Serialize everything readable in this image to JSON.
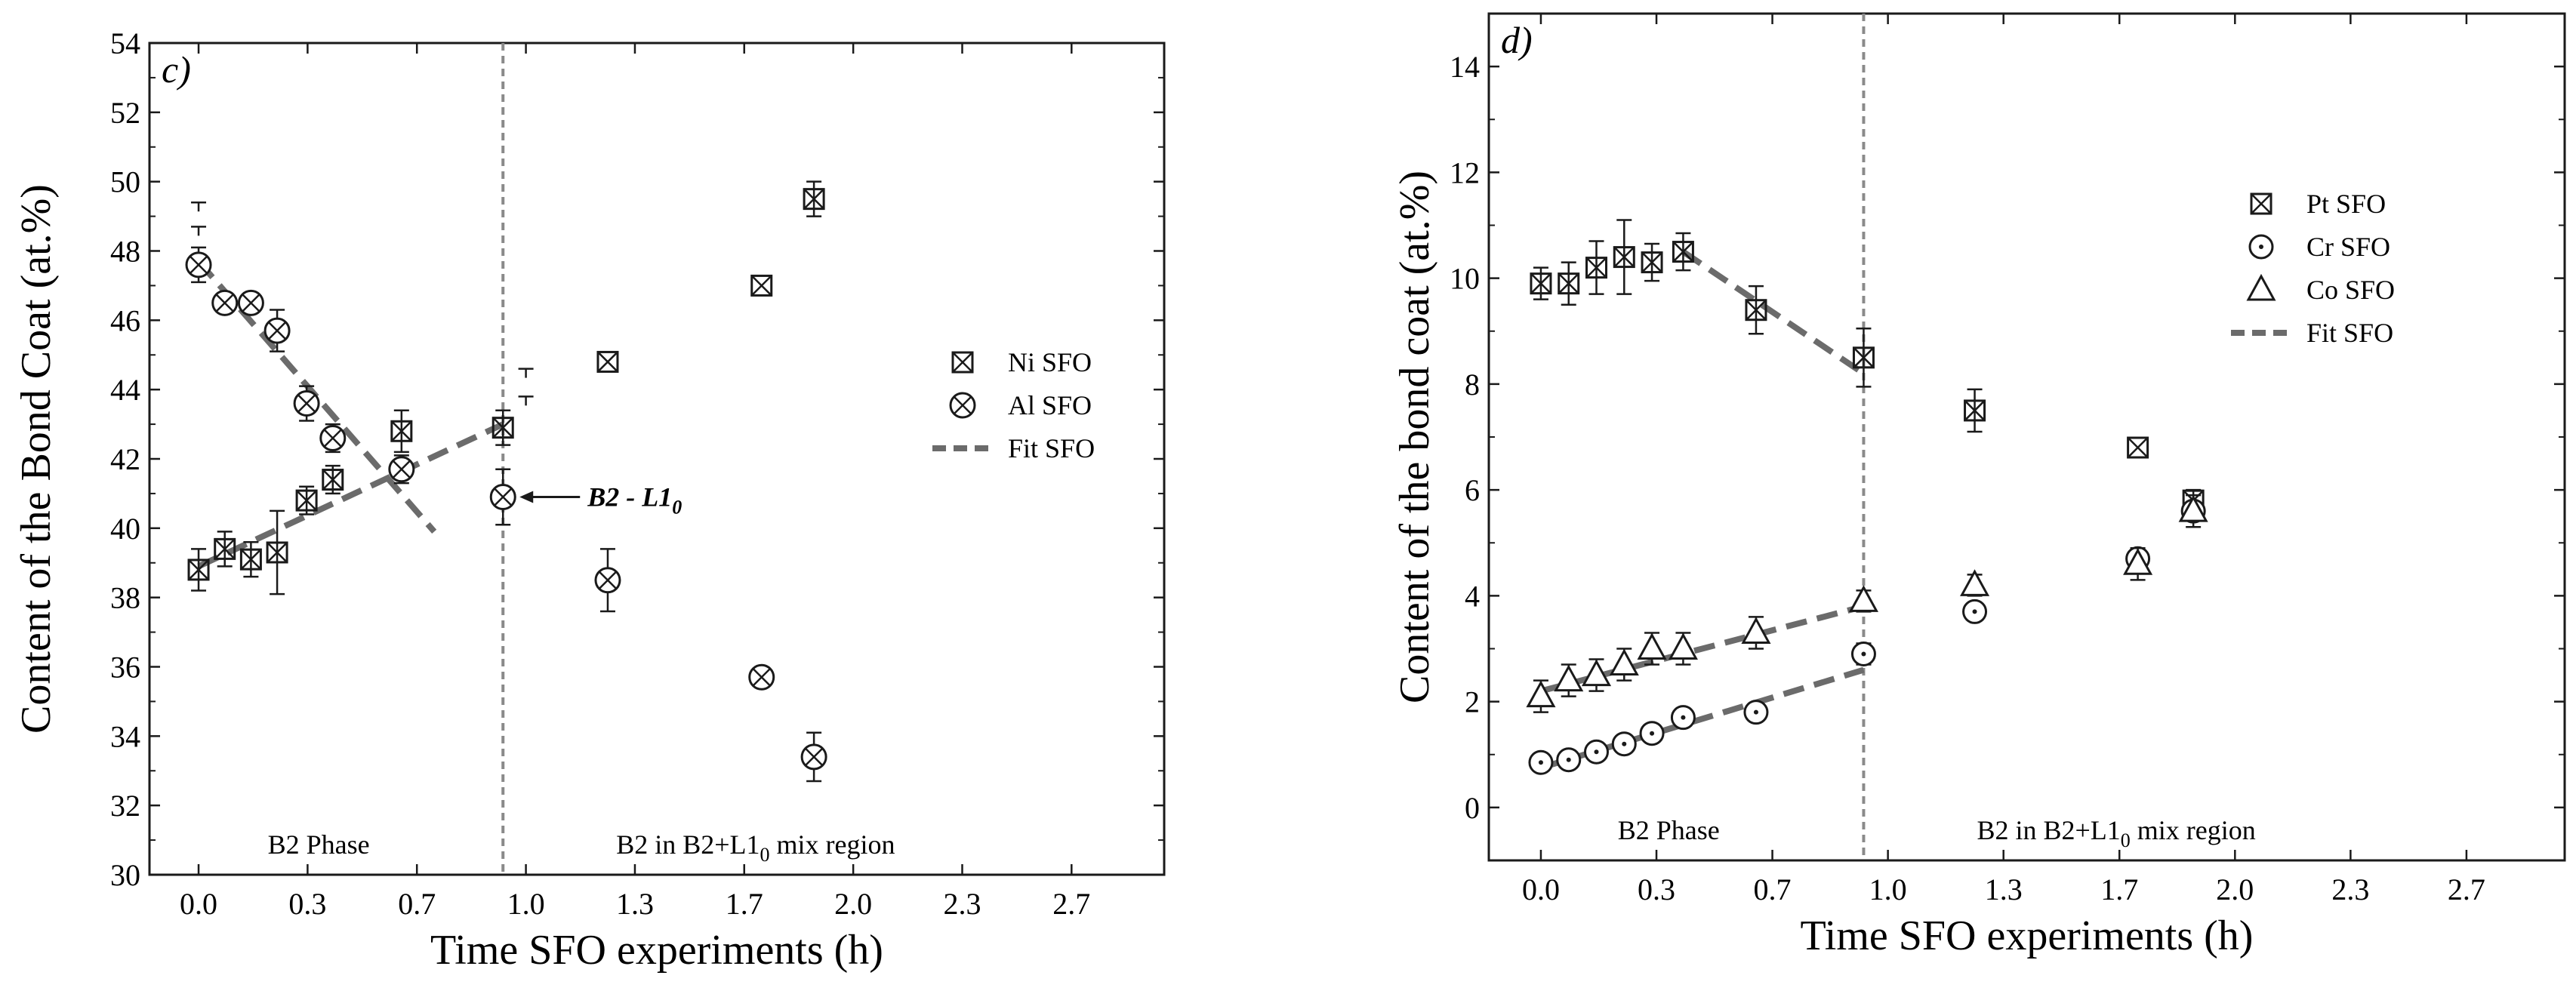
{
  "chart_data": [
    {
      "type": "scatter",
      "panel_label": "c)",
      "xlabel": "Time SFO experiments (h)",
      "ylabel": "Content of the Bond Coat (at.%)",
      "xlim": [
        -0.15,
        2.95
      ],
      "ylim": [
        30,
        54
      ],
      "xticks": [
        "0.0",
        "0.3",
        "0.7",
        "1.0",
        "1.3",
        "1.7",
        "2.0",
        "2.3",
        "2.7"
      ],
      "xtick_values": [
        0.0,
        0.333,
        0.667,
        1.0,
        1.333,
        1.667,
        2.0,
        2.333,
        2.667
      ],
      "yticks": [
        30,
        32,
        34,
        36,
        38,
        40,
        42,
        44,
        46,
        48,
        50,
        52,
        54
      ],
      "grid": false,
      "legend_position": "right",
      "divider_x": 0.93,
      "region_labels": {
        "left": "B2 Phase",
        "right_prefix": "B2 in B2+L1",
        "right_sub": "0",
        "right_suffix": " mix region"
      },
      "annotation": {
        "text": "B2 - L1",
        "sub": "0",
        "x": 0.93,
        "y": 40.9
      },
      "series": [
        {
          "name": "Ni SFO",
          "marker": "square-x",
          "x": [
            0.0,
            0.08,
            0.16,
            0.24,
            0.33,
            0.41,
            0.62,
            0.93,
            1.25,
            1.72,
            1.88
          ],
          "y": [
            38.8,
            39.4,
            39.1,
            39.3,
            40.8,
            41.4,
            42.8,
            42.9,
            44.8,
            47.0,
            49.5
          ],
          "err": [
            0.6,
            0.5,
            0.5,
            1.2,
            0.4,
            0.4,
            0.6,
            0.5,
            0.0,
            0.0,
            0.5
          ]
        },
        {
          "name": "Al SFO",
          "marker": "circle-x",
          "x": [
            0.0,
            0.08,
            0.16,
            0.24,
            0.33,
            0.41,
            0.62,
            0.93,
            1.25,
            1.72,
            1.88
          ],
          "y": [
            47.6,
            46.5,
            46.5,
            45.7,
            43.6,
            42.6,
            41.7,
            40.9,
            38.5,
            35.7,
            33.4
          ],
          "err": [
            0.5,
            0.0,
            0.0,
            0.6,
            0.5,
            0.4,
            0.4,
            0.8,
            0.9,
            0.0,
            0.7
          ]
        },
        {
          "name": "Fit SFO",
          "style": "dashed",
          "lines": [
            {
              "x": [
                0.0,
                0.93
              ],
              "y": [
                38.9,
                43.0
              ]
            },
            {
              "x": [
                0.0,
                0.72
              ],
              "y": [
                47.7,
                39.9
              ]
            }
          ]
        }
      ],
      "extra_marks": [
        {
          "x": 0.0,
          "y": 49.4
        },
        {
          "x": 0.0,
          "y": 48.7
        },
        {
          "x": 1.0,
          "y": 44.6
        },
        {
          "x": 1.0,
          "y": 43.8
        }
      ]
    },
    {
      "type": "scatter",
      "panel_label": "d)",
      "xlabel": "Time SFO experiments (h)",
      "ylabel": "Content of the bond coat (at.%)",
      "xlim": [
        -0.15,
        2.95
      ],
      "ylim": [
        -1,
        15
      ],
      "xticks": [
        "0.0",
        "0.3",
        "0.7",
        "1.0",
        "1.3",
        "1.7",
        "2.0",
        "2.3",
        "2.7"
      ],
      "xtick_values": [
        0.0,
        0.333,
        0.667,
        1.0,
        1.333,
        1.667,
        2.0,
        2.333,
        2.667
      ],
      "yticks": [
        0,
        2,
        4,
        6,
        8,
        10,
        12,
        14
      ],
      "grid": false,
      "legend_position": "top-right",
      "divider_x": 0.93,
      "region_labels": {
        "left": "B2 Phase",
        "right_prefix": "B2 in B2+L1",
        "right_sub": "0",
        "right_suffix": " mix region"
      },
      "series": [
        {
          "name": "Pt SFO",
          "marker": "square-x",
          "x": [
            0.0,
            0.08,
            0.16,
            0.24,
            0.32,
            0.41,
            0.62,
            0.93,
            1.25,
            1.72,
            1.88
          ],
          "y": [
            9.9,
            9.9,
            10.2,
            10.4,
            10.3,
            10.5,
            9.4,
            8.5,
            7.5,
            6.8,
            5.8
          ],
          "err": [
            0.3,
            0.4,
            0.5,
            0.7,
            0.35,
            0.35,
            0.45,
            0.55,
            0.4,
            0.0,
            0.2
          ]
        },
        {
          "name": "Cr SFO",
          "marker": "circle-dot",
          "x": [
            0.0,
            0.08,
            0.16,
            0.24,
            0.32,
            0.41,
            0.62,
            0.93,
            1.25,
            1.72,
            1.88
          ],
          "y": [
            0.85,
            0.9,
            1.05,
            1.2,
            1.4,
            1.7,
            1.8,
            2.9,
            3.7,
            4.7,
            5.6
          ],
          "err": [
            0.1,
            0.1,
            0.1,
            0.1,
            0.1,
            0.1,
            0.1,
            0.2,
            0.1,
            0.1,
            0.1
          ]
        },
        {
          "name": "Co SFO",
          "marker": "triangle",
          "x": [
            0.0,
            0.08,
            0.16,
            0.24,
            0.32,
            0.41,
            0.62,
            0.93,
            1.25,
            1.72,
            1.88
          ],
          "y": [
            2.1,
            2.4,
            2.5,
            2.7,
            3.0,
            3.0,
            3.3,
            3.9,
            4.2,
            4.6,
            5.6
          ],
          "err": [
            0.3,
            0.3,
            0.3,
            0.3,
            0.3,
            0.3,
            0.3,
            0.2,
            0.2,
            0.3,
            0.3
          ]
        },
        {
          "name": "Fit SFO",
          "style": "dashed",
          "lines": [
            {
              "x": [
                0.0,
                0.93
              ],
              "y": [
                2.2,
                3.8
              ]
            },
            {
              "x": [
                0.0,
                0.93
              ],
              "y": [
                0.75,
                2.6
              ]
            },
            {
              "x": [
                0.41,
                0.93
              ],
              "y": [
                10.5,
                8.2
              ]
            }
          ]
        }
      ]
    }
  ]
}
